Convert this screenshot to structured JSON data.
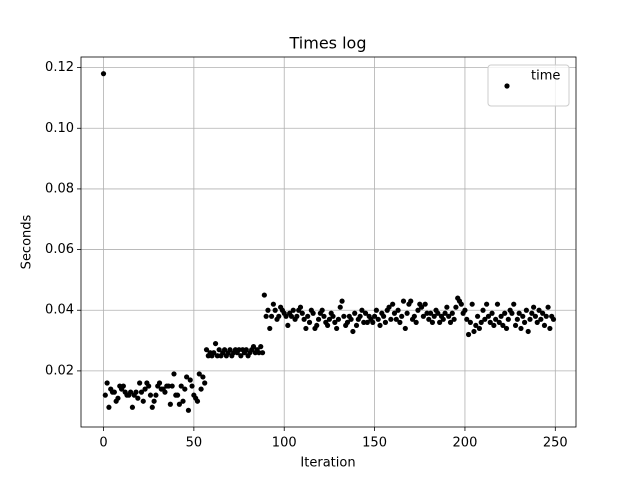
{
  "chart_data": {
    "type": "scatter",
    "title": "Times log",
    "x_label": "Iteration",
    "y_label": "Seconds",
    "series": [
      {
        "name": "time",
        "color": "#000000",
        "values": [
          0.118,
          0.012,
          0.016,
          0.008,
          0.014,
          0.013,
          0.013,
          0.01,
          0.011,
          0.015,
          0.014,
          0.015,
          0.013,
          0.012,
          0.012,
          0.013,
          0.008,
          0.012,
          0.013,
          0.011,
          0.016,
          0.013,
          0.01,
          0.014,
          0.016,
          0.015,
          0.012,
          0.008,
          0.01,
          0.012,
          0.015,
          0.016,
          0.014,
          0.014,
          0.013,
          0.015,
          0.015,
          0.009,
          0.015,
          0.019,
          0.012,
          0.012,
          0.009,
          0.015,
          0.01,
          0.014,
          0.018,
          0.007,
          0.017,
          0.015,
          0.012,
          0.011,
          0.01,
          0.019,
          0.014,
          0.018,
          0.016,
          0.027,
          0.025,
          0.026,
          0.025,
          0.026,
          0.029,
          0.025,
          0.027,
          0.025,
          0.026,
          0.027,
          0.025,
          0.026,
          0.027,
          0.025,
          0.026,
          0.027,
          0.026,
          0.027,
          0.025,
          0.027,
          0.026,
          0.027,
          0.025,
          0.026,
          0.027,
          0.028,
          0.026,
          0.027,
          0.026,
          0.028,
          0.026,
          0.045,
          0.038,
          0.04,
          0.034,
          0.038,
          0.042,
          0.04,
          0.037,
          0.038,
          0.041,
          0.04,
          0.039,
          0.038,
          0.035,
          0.039,
          0.038,
          0.04,
          0.037,
          0.038,
          0.04,
          0.041,
          0.039,
          0.037,
          0.034,
          0.038,
          0.036,
          0.04,
          0.039,
          0.034,
          0.035,
          0.037,
          0.039,
          0.04,
          0.038,
          0.036,
          0.035,
          0.037,
          0.039,
          0.038,
          0.036,
          0.034,
          0.037,
          0.041,
          0.043,
          0.038,
          0.035,
          0.036,
          0.038,
          0.037,
          0.033,
          0.039,
          0.035,
          0.037,
          0.038,
          0.04,
          0.036,
          0.039,
          0.036,
          0.038,
          0.037,
          0.036,
          0.038,
          0.04,
          0.037,
          0.035,
          0.039,
          0.038,
          0.036,
          0.04,
          0.041,
          0.037,
          0.042,
          0.039,
          0.037,
          0.04,
          0.036,
          0.038,
          0.043,
          0.034,
          0.039,
          0.042,
          0.043,
          0.037,
          0.038,
          0.036,
          0.04,
          0.042,
          0.041,
          0.038,
          0.042,
          0.039,
          0.037,
          0.039,
          0.036,
          0.038,
          0.04,
          0.039,
          0.036,
          0.038,
          0.037,
          0.039,
          0.041,
          0.038,
          0.036,
          0.039,
          0.037,
          0.041,
          0.044,
          0.043,
          0.042,
          0.039,
          0.04,
          0.037,
          0.032,
          0.036,
          0.042,
          0.033,
          0.035,
          0.038,
          0.034,
          0.036,
          0.04,
          0.037,
          0.042,
          0.038,
          0.036,
          0.039,
          0.035,
          0.037,
          0.042,
          0.036,
          0.038,
          0.035,
          0.039,
          0.034,
          0.037,
          0.04,
          0.039,
          0.042,
          0.035,
          0.037,
          0.039,
          0.034,
          0.038,
          0.036,
          0.04,
          0.033,
          0.037,
          0.039,
          0.041,
          0.038,
          0.036,
          0.04,
          0.037,
          0.039,
          0.035,
          0.038,
          0.041,
          0.034,
          0.038,
          0.037
        ]
      }
    ],
    "xlim": [
      -12.45,
      261.45
    ],
    "xticks": [
      0,
      50,
      100,
      150,
      200,
      250
    ],
    "ylim": [
      0.0015,
      0.1235
    ],
    "yticks": [
      0.02,
      0.04,
      0.06,
      0.08,
      {
        "value": 0.1,
        "label": "0.10"
      },
      0.12
    ],
    "grid": true,
    "legend": "upper right"
  }
}
